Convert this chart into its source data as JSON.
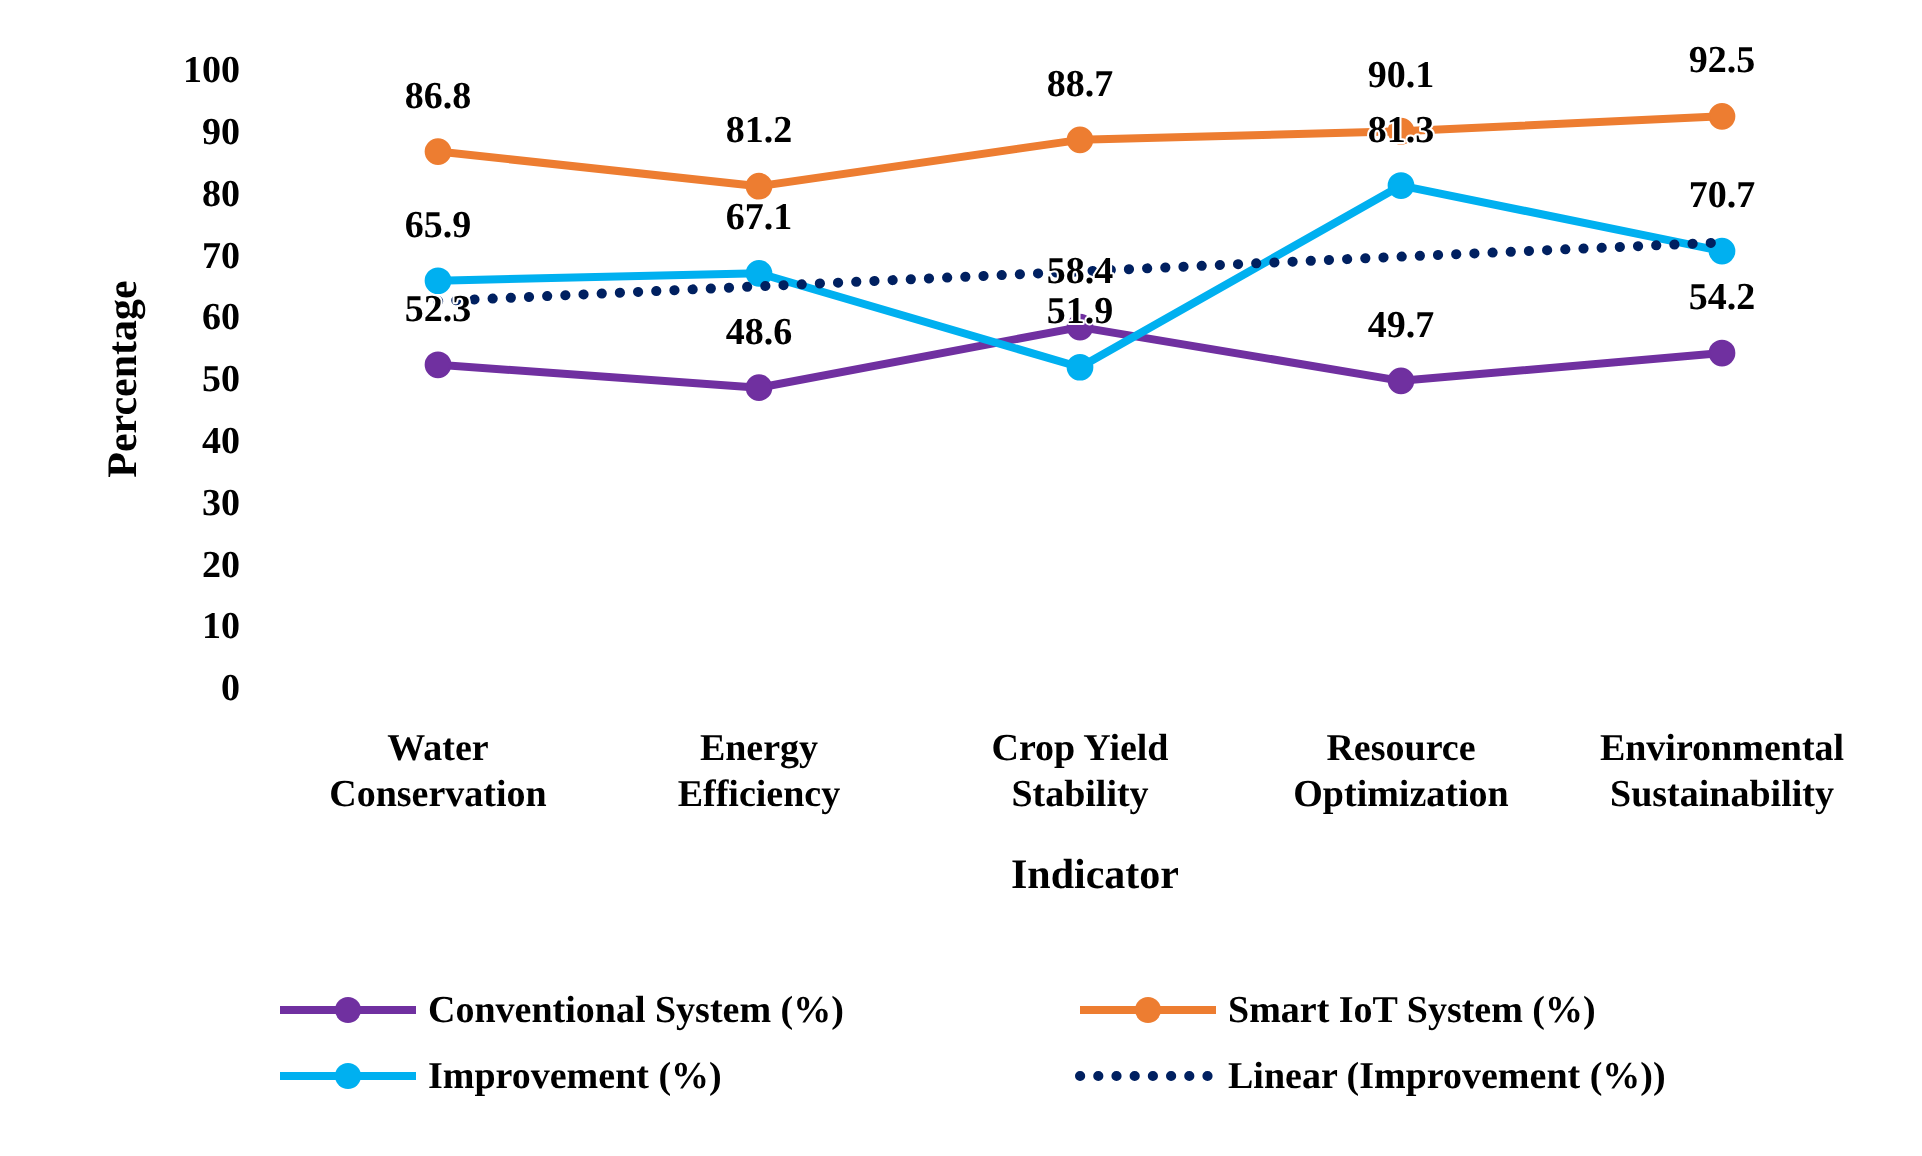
{
  "chart_data": {
    "type": "line",
    "xlabel": "Indicator",
    "ylabel": "Percentage",
    "categories": [
      "Water\nConservation",
      "Energy\nEfficiency",
      "Crop Yield\nStability",
      "Resource\nOptimization",
      "Environmental\nSustainability"
    ],
    "ylim": [
      0,
      100
    ],
    "yticks": [
      0,
      10,
      20,
      30,
      40,
      50,
      60,
      70,
      80,
      90,
      100
    ],
    "marker": "circle",
    "legend": "bottom",
    "series": [
      {
        "name": "Conventional System (%)",
        "color": "#7030a0",
        "values": [
          52.3,
          48.6,
          58.4,
          49.7,
          54.2
        ],
        "value_labels": [
          "52.3",
          "48.6",
          "58.4",
          "49.7",
          "54.2"
        ]
      },
      {
        "name": "Smart IoT System (%)",
        "color": "#ed7d31",
        "values": [
          86.8,
          81.2,
          88.7,
          90.1,
          92.5
        ],
        "value_labels": [
          "86.8",
          "81.2",
          "88.7",
          "90.1",
          "92.5"
        ]
      },
      {
        "name": "Improvement (%)",
        "color": "#00b0f0",
        "values": [
          65.9,
          67.1,
          51.9,
          81.3,
          70.7
        ],
        "value_labels": [
          "65.9",
          "67.1",
          "51.9",
          "81.3",
          "70.7"
        ]
      },
      {
        "name": "Linear (Improvement (%))",
        "color": "#002060",
        "values": [
          62.6,
          65.0,
          67.4,
          69.8,
          72.1
        ],
        "marker": "none",
        "line_style": "dotted"
      }
    ]
  }
}
